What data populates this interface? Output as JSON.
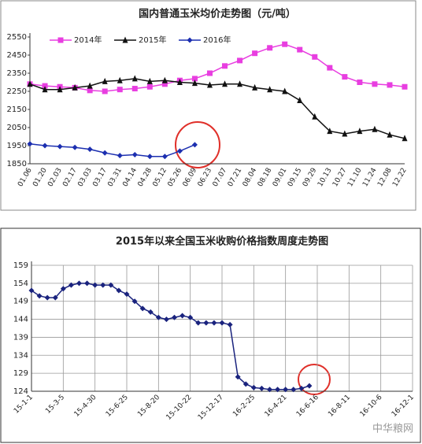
{
  "chart_data": [
    {
      "type": "line",
      "title": "国内普通玉米均价走势图（元/吨）",
      "categories": [
        "01.06",
        "01.20",
        "02.03",
        "02.17",
        "03.03",
        "03.17",
        "03.31",
        "04.14",
        "04.28",
        "05.12",
        "05.26",
        "06.09",
        "06.23",
        "07.07",
        "07.21",
        "08.04",
        "08.18",
        "09.01",
        "09.15",
        "09.29",
        "10.13",
        "10.27",
        "11.10",
        "11.24",
        "12.08",
        "12.22"
      ],
      "series": [
        {
          "name": "2014年",
          "color": "#e83ee0",
          "marker": "square",
          "values": [
            2290,
            2280,
            2275,
            2270,
            2255,
            2250,
            2260,
            2265,
            2275,
            2290,
            2310,
            2320,
            2350,
            2390,
            2420,
            2460,
            2490,
            2510,
            2480,
            2440,
            2380,
            2330,
            2300,
            2290,
            2285,
            2275
          ]
        },
        {
          "name": "2015年",
          "color": "#111111",
          "marker": "triangle",
          "values": [
            2290,
            2260,
            2260,
            2270,
            2280,
            2305,
            2310,
            2320,
            2305,
            2310,
            2300,
            2295,
            2285,
            2290,
            2290,
            2270,
            2260,
            2250,
            2200,
            2110,
            2030,
            2015,
            2030,
            2040,
            2010,
            1990
          ]
        },
        {
          "name": "2016年",
          "color": "#1c2fb0",
          "marker": "diamond",
          "values": [
            1960,
            1950,
            1945,
            1940,
            1930,
            1910,
            1895,
            1900,
            1890,
            1890,
            1920,
            1955,
            null,
            null,
            null,
            null,
            null,
            null,
            null,
            null,
            null,
            null,
            null,
            null,
            null,
            null
          ]
        }
      ],
      "ylim": [
        1850,
        2550
      ],
      "yticks": [
        1850,
        1950,
        2050,
        2150,
        2250,
        2350,
        2450,
        2550
      ],
      "grid": false,
      "legend": "top-left"
    },
    {
      "type": "line",
      "title": "2015年以来全国玉米收购价格指数周度走势图",
      "categories": [
        "15-1-1",
        null,
        null,
        null,
        "15-3-5",
        null,
        null,
        null,
        "15-4-30",
        null,
        null,
        null,
        "15-6-25",
        null,
        null,
        null,
        "15-8-20",
        null,
        null,
        null,
        "15-10-22",
        null,
        null,
        null,
        "15-12-17",
        null,
        null,
        null,
        "16-2-25",
        null,
        null,
        null,
        "16-4-21",
        null,
        null,
        null,
        "16-6-16",
        null,
        null,
        null,
        "16-8-11",
        null,
        null,
        null,
        "16-10-6",
        null,
        null,
        null,
        "16-12-1"
      ],
      "series": [
        {
          "name": null,
          "color": "#1a237e",
          "marker": "diamond",
          "values": [
            152,
            150.5,
            150,
            150,
            152.5,
            153.5,
            154,
            154,
            153.5,
            153.5,
            153.5,
            152,
            151,
            149,
            147,
            146,
            144.5,
            144,
            144.5,
            145,
            144.5,
            143,
            143,
            143,
            143,
            142.5,
            128,
            126,
            125,
            124.8,
            124.5,
            124.5,
            124.5,
            124.5,
            124.8,
            125.5,
            null,
            null,
            null,
            null,
            null,
            null,
            null,
            null,
            null,
            null,
            null,
            null,
            null
          ]
        }
      ],
      "ylim": [
        124,
        159
      ],
      "yticks": [
        124,
        129,
        134,
        139,
        144,
        149,
        154,
        159
      ],
      "grid": true,
      "annotation": "中华粮网"
    }
  ]
}
